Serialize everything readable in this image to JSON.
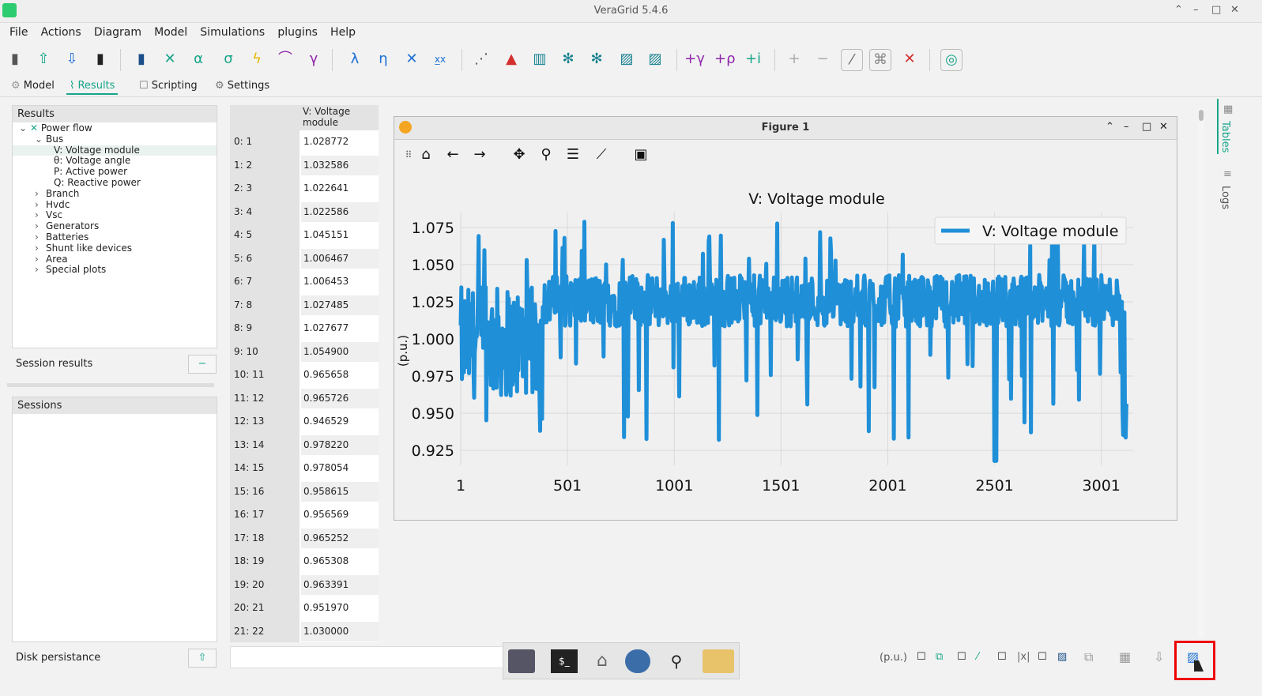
{
  "window": {
    "title": "VeraGrid 5.4.6"
  },
  "menu": [
    "File",
    "Actions",
    "Diagram",
    "Model",
    "Simulations",
    "plugins",
    "Help"
  ],
  "tabs": [
    "Model",
    "Results",
    "Scripting",
    "Settings"
  ],
  "results_panel": {
    "header": "Results",
    "tree": [
      {
        "label": "Power flow",
        "level": 0,
        "arrow": "v"
      },
      {
        "label": "Bus",
        "level": 1,
        "arrow": "v"
      },
      {
        "label": "V: Voltage module",
        "level": 2,
        "arrow": "",
        "selected": true
      },
      {
        "label": "θ: Voltage angle",
        "level": 2,
        "arrow": ""
      },
      {
        "label": "P: Active power",
        "level": 2,
        "arrow": ""
      },
      {
        "label": "Q: Reactive power",
        "level": 2,
        "arrow": ""
      },
      {
        "label": "Branch",
        "level": 1,
        "arrow": ">"
      },
      {
        "label": "Hvdc",
        "level": 1,
        "arrow": ">"
      },
      {
        "label": "Vsc",
        "level": 1,
        "arrow": ">"
      },
      {
        "label": "Generators",
        "level": 1,
        "arrow": ">"
      },
      {
        "label": "Batteries",
        "level": 1,
        "arrow": ">"
      },
      {
        "label": "Shunt like devices",
        "level": 1,
        "arrow": ">"
      },
      {
        "label": "Area",
        "level": 1,
        "arrow": ">"
      },
      {
        "label": "Special plots",
        "level": 1,
        "arrow": ">"
      }
    ]
  },
  "session_results": {
    "label": "Session results",
    "button": "−"
  },
  "sessions": {
    "header": "Sessions"
  },
  "disk": {
    "label": "Disk persistance"
  },
  "table": {
    "column": "V: Voltage module",
    "rows": [
      [
        "0: 1",
        "1.028772"
      ],
      [
        "1: 2",
        "1.032586"
      ],
      [
        "2: 3",
        "1.022641"
      ],
      [
        "3: 4",
        "1.022586"
      ],
      [
        "4: 5",
        "1.045151"
      ],
      [
        "5: 6",
        "1.006467"
      ],
      [
        "6: 7",
        "1.006453"
      ],
      [
        "7: 8",
        "1.027485"
      ],
      [
        "8: 9",
        "1.027677"
      ],
      [
        "9: 10",
        "1.054900"
      ],
      [
        "10: 11",
        "0.965658"
      ],
      [
        "11: 12",
        "0.965726"
      ],
      [
        "12: 13",
        "0.946529"
      ],
      [
        "13: 14",
        "0.978220"
      ],
      [
        "14: 15",
        "0.978054"
      ],
      [
        "15: 16",
        "0.958615"
      ],
      [
        "16: 17",
        "0.956569"
      ],
      [
        "17: 18",
        "0.965252"
      ],
      [
        "18: 19",
        "0.965308"
      ],
      [
        "19: 20",
        "0.963391"
      ],
      [
        "20: 21",
        "0.951970"
      ],
      [
        "21: 22",
        "1.030000"
      ]
    ]
  },
  "figure": {
    "window_title": "Figure 1"
  },
  "chart_data": {
    "type": "line",
    "title": "V: Voltage module",
    "ylabel": "(p.u.)",
    "xlabel": "",
    "legend": "top-right",
    "xlim": [
      1,
      3150
    ],
    "ylim": [
      0.915,
      1.085
    ],
    "xticks": [
      "1",
      "501",
      "1001",
      "1501",
      "2001",
      "2501",
      "3001"
    ],
    "yticks": [
      "0.925",
      "0.950",
      "0.975",
      "1.000",
      "1.025",
      "1.050",
      "1.075"
    ],
    "series": [
      {
        "name": "V: Voltage module",
        "color": "#1f8fd8"
      }
    ]
  },
  "right_tabs": [
    "Tables",
    "Logs"
  ],
  "status": {
    "units": "(p.u.)"
  },
  "colors": {
    "accent": "#17a589",
    "line": "#1f8fd8",
    "highlight": "#e00000"
  }
}
